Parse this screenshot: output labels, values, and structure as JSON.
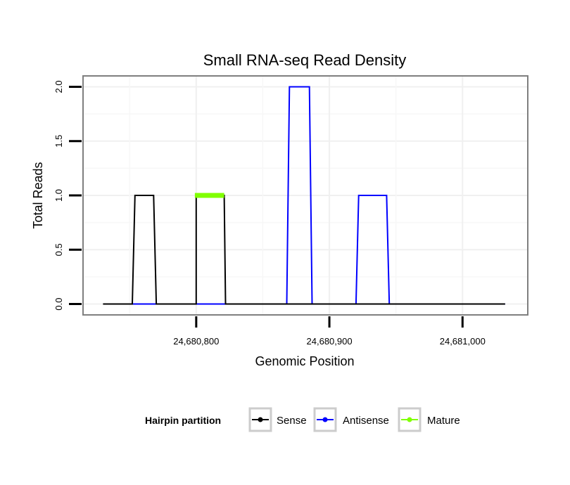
{
  "chart_data": {
    "type": "line",
    "title": "Small RNA-seq Read Density",
    "xlabel": "Genomic Position",
    "ylabel": "Total Reads",
    "xlim": [
      24680715,
      24681049
    ],
    "ylim": [
      -0.1,
      2.1
    ],
    "x_ticks": [
      {
        "value": 24680800,
        "label": "24,680,800"
      },
      {
        "value": 24680900,
        "label": "24,680,900"
      },
      {
        "value": 24681000,
        "label": "24,681,000"
      }
    ],
    "y_ticks": [
      {
        "value": 0,
        "label": "0.0"
      },
      {
        "value": 0.5,
        "label": "0.5"
      },
      {
        "value": 1,
        "label": "1.0"
      },
      {
        "value": 1.5,
        "label": "1.5"
      },
      {
        "value": 2,
        "label": "2.0"
      }
    ],
    "grid": true,
    "series": [
      {
        "name": "Sense",
        "color": "#000000",
        "x": [
          24680730,
          24680752,
          24680754,
          24680768,
          24680770,
          24680800,
          24680800,
          24680821,
          24680822,
          24680930,
          24681032
        ],
        "y": [
          0,
          0,
          1,
          1,
          0,
          0,
          1,
          1,
          0,
          0,
          0
        ]
      },
      {
        "name": "Antisense",
        "color": "#0000ff",
        "x": [
          24680752,
          24680868,
          24680870,
          24680885,
          24680887,
          24680920,
          24680922,
          24680943,
          24680945,
          24681032
        ],
        "y": [
          0,
          0,
          2,
          2,
          0,
          0,
          1,
          1,
          0,
          0
        ]
      },
      {
        "name": "Mature",
        "color": "#80ff00",
        "x": [
          24680799,
          24680821
        ],
        "y": [
          1,
          1
        ]
      }
    ],
    "legend": {
      "title": "Hairpin partition",
      "position": "bottom",
      "entries": [
        "Sense",
        "Antisense",
        "Mature"
      ]
    }
  }
}
